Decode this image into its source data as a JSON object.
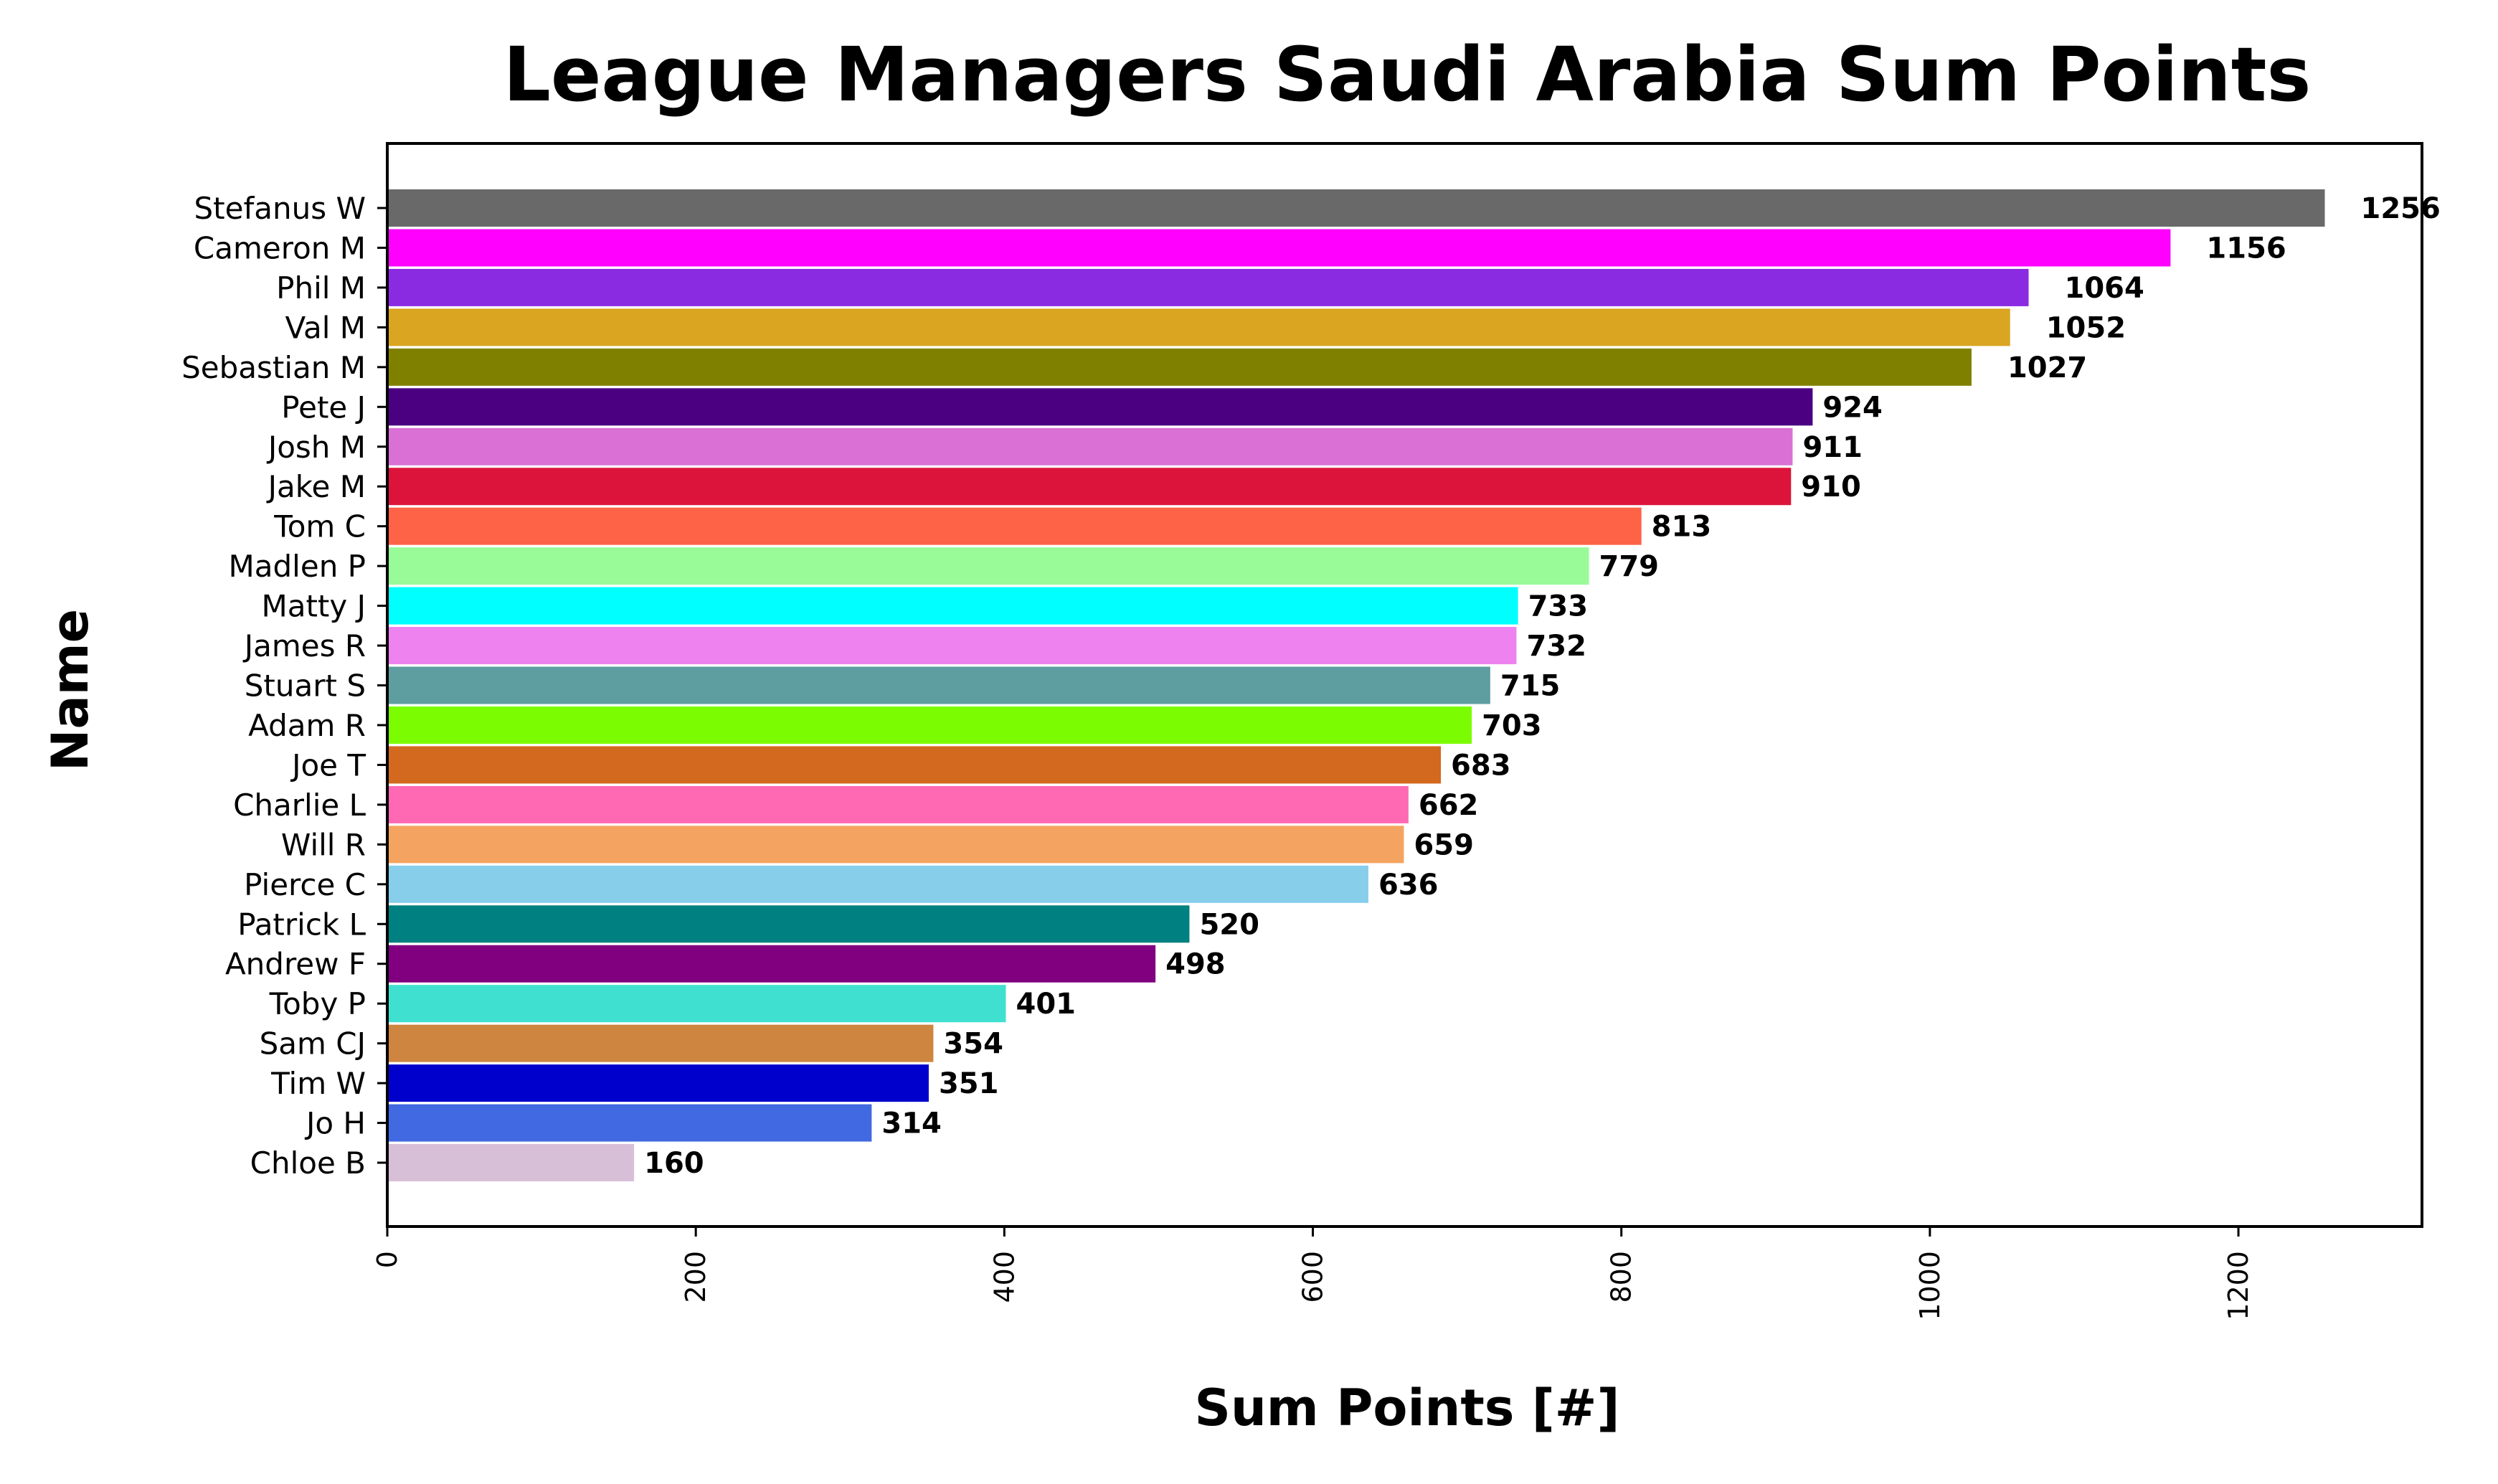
{
  "chart_data": {
    "type": "bar",
    "orientation": "horizontal",
    "title": "League Managers Saudi Arabia Sum Points",
    "xlabel": "Sum Points [#]",
    "ylabel": "Name",
    "xlim": [
      0,
      1319
    ],
    "xticks": [
      0,
      200,
      400,
      600,
      800,
      1000,
      1200
    ],
    "grid": false,
    "legend": "none",
    "categories": [
      "Stefanus W",
      "Cameron M",
      "Phil M",
      "Val M",
      "Sebastian M",
      "Pete J",
      "Josh M",
      "Jake M",
      "Tom C",
      "Madlen P",
      "Matty J",
      "James R",
      "Stuart S",
      "Adam R",
      "Joe T",
      "Charlie L",
      "Will R",
      "Pierce C",
      "Patrick L",
      "Andrew F",
      "Toby P",
      "Sam CJ",
      "Tim W",
      "Jo H",
      "Chloe B"
    ],
    "values": [
      1256,
      1156,
      1064,
      1052,
      1027,
      924,
      911,
      910,
      813,
      779,
      733,
      732,
      715,
      703,
      683,
      662,
      659,
      636,
      520,
      498,
      401,
      354,
      351,
      314,
      160
    ],
    "colors": [
      "#696969",
      "#ff00ff",
      "#8a2be2",
      "#daa520",
      "#808000",
      "#4b0082",
      "#da70d6",
      "#dc143c",
      "#ff6347",
      "#98fb98",
      "#00ffff",
      "#ee82ee",
      "#5f9ea0",
      "#7cfc00",
      "#d2691e",
      "#ff69b4",
      "#f4a460",
      "#87ceeb",
      "#008080",
      "#800080",
      "#40e0d0",
      "#cd853f",
      "#0000cd",
      "#4169e1",
      "#d8bfd8"
    ]
  }
}
